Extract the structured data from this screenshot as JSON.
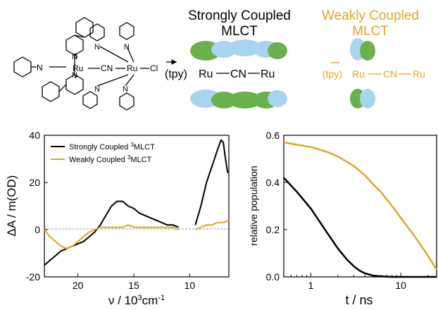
{
  "colors": {
    "strong": "#000000",
    "weak": "#e0a52a",
    "orbital_green": "#6ab04c",
    "orbital_blue": "#a9d4f0"
  },
  "header": {
    "strong_title_1": "Strongly Coupled",
    "strong_title_2": "MLCT",
    "weak_title_1": "Weakly Coupled",
    "weak_title_2": "MLCT",
    "scheme_tpy": "(tpy)",
    "scheme_ru1": "Ru",
    "scheme_cn": "CN",
    "scheme_ru2": "Ru",
    "arrow": "→"
  },
  "molecule": {
    "ru1": "Ru",
    "ru2": "Ru",
    "cn": "CN",
    "cl": "Cl",
    "n": "N"
  },
  "chart_data": [
    {
      "type": "line",
      "ylabel": "ΔA / m(OD)",
      "xlabel": "ν / 10³cm⁻¹",
      "xlabel_main": "ν / 10",
      "xlabel_sup": "3",
      "xlabel_unit": "cm",
      "xlabel_sup2": "-1",
      "xlim": [
        23,
        6.5
      ],
      "ylim": [
        -20,
        40
      ],
      "xticks": [
        20,
        15,
        10
      ],
      "yticks": [
        -20,
        0,
        20,
        40
      ],
      "legend": "top-left",
      "series": [
        {
          "name": "Strongly Coupled ³MLCT",
          "legend_main": "Strongly Coupled ",
          "legend_sup": "3",
          "legend_tail": "MLCT",
          "color": "#000000",
          "segments": [
            {
              "x": [
                23,
                22.5,
                22,
                21.5,
                21,
                20.5,
                20,
                19.5,
                19,
                18.5,
                18,
                17.5,
                17,
                16.5,
                16,
                15.5,
                15,
                14.5,
                14,
                13.5,
                13,
                12.5,
                12,
                11.5,
                11
              ],
              "y": [
                -15,
                -13,
                -11,
                -9,
                -8,
                -7,
                -6,
                -5,
                -3,
                -1,
                2,
                6,
                10,
                12,
                12,
                10,
                9,
                7,
                6,
                5,
                4,
                3,
                2,
                2,
                1
              ]
            },
            {
              "x": [
                9.5,
                9,
                8.5,
                8,
                7.5,
                7.2,
                7,
                6.8,
                6.6
              ],
              "y": [
                2,
                10,
                20,
                27,
                34,
                38,
                37,
                30,
                24
              ]
            }
          ]
        },
        {
          "name": "Weakly Coupled ³MLCT",
          "legend_main": "Weakly Coupled ",
          "legend_sup": "3",
          "legend_tail": "MLCT",
          "color": "#e0a52a",
          "segments": [
            {
              "x": [
                23,
                22.5,
                22,
                21.5,
                21,
                20.5,
                20,
                19.5,
                19,
                18.5,
                18,
                17.5,
                17,
                16.5,
                16,
                15.5,
                15,
                14.5,
                14,
                13.5,
                13,
                12.5,
                12,
                11.5,
                11
              ],
              "y": [
                0,
                -3,
                -5,
                -7,
                -8,
                -7,
                -5,
                -3,
                -1,
                0,
                1,
                1,
                1,
                1,
                1,
                2,
                1,
                1,
                1,
                1,
                1,
                1,
                1,
                1,
                0
              ]
            },
            {
              "x": [
                9.5,
                9,
                8.5,
                8,
                7.5,
                7,
                6.5
              ],
              "y": [
                0,
                1,
                2,
                2,
                3,
                3,
                4
              ]
            }
          ]
        }
      ]
    },
    {
      "type": "line",
      "ylabel": "relative population",
      "xlabel": "t / ns",
      "xscale": "log",
      "xlim": [
        0.5,
        25
      ],
      "ylim": [
        0,
        0.6
      ],
      "xticks": [
        1,
        10
      ],
      "xtick_labels": [
        "1",
        "10"
      ],
      "yticks": [
        0.0,
        0.2,
        0.4,
        0.6
      ],
      "ytick_labels": [
        "0.0",
        "0.2",
        "0.4",
        "0.6"
      ],
      "series": [
        {
          "color": "#000000",
          "x": [
            0.5,
            0.7,
            1,
            1.5,
            2,
            2.5,
            3,
            3.5,
            4,
            5,
            6,
            8,
            10,
            15,
            25
          ],
          "y": [
            0.42,
            0.36,
            0.29,
            0.19,
            0.12,
            0.075,
            0.045,
            0.026,
            0.015,
            0.005,
            0.002,
            0.0,
            0.0,
            0.0,
            0.0
          ]
        },
        {
          "color": "#e0a52a",
          "x": [
            0.5,
            0.7,
            1,
            1.5,
            2,
            3,
            4,
            5,
            6,
            8,
            10,
            12,
            15,
            20,
            25
          ],
          "y": [
            0.57,
            0.56,
            0.55,
            0.53,
            0.51,
            0.47,
            0.43,
            0.39,
            0.36,
            0.3,
            0.25,
            0.21,
            0.16,
            0.09,
            0.03
          ]
        }
      ]
    }
  ]
}
